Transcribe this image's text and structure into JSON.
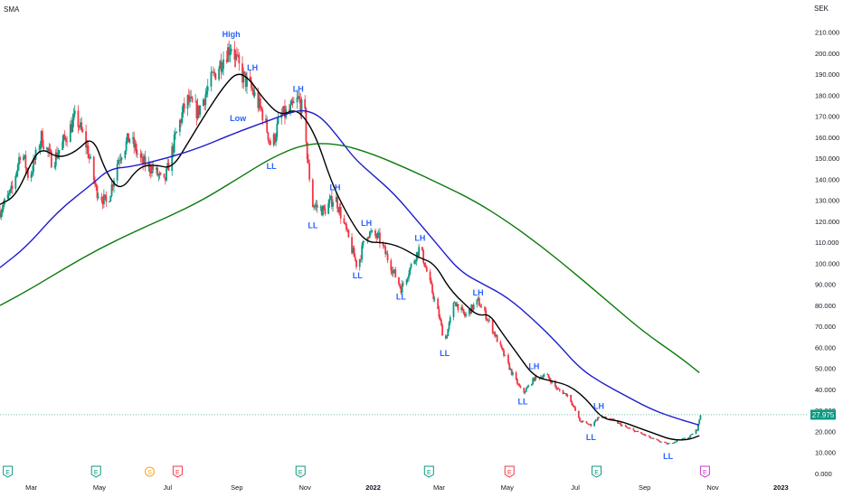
{
  "header": {
    "indicator_label": "SMA",
    "currency": "SEK"
  },
  "price_tag": {
    "value": "27.975",
    "value_num": 27.975,
    "color": "#089981"
  },
  "colors": {
    "up": "#089981",
    "down": "#f23645",
    "sma_short": "#000000",
    "sma_mid": "#1c1ccc",
    "sma_long": "#0a7a0a",
    "annotation": "#2962ff"
  },
  "chart_data": {
    "type": "line",
    "title": "",
    "xlabel": "",
    "ylabel": "",
    "y_axis": {
      "min": 0,
      "max": 215,
      "scale": "linear",
      "position": "right"
    },
    "y_ticks": [
      {
        "v": 0,
        "label": "0.000"
      },
      {
        "v": 10,
        "label": "10.000"
      },
      {
        "v": 20,
        "label": "20.000"
      },
      {
        "v": 30,
        "label": "30.000"
      },
      {
        "v": 40,
        "label": "40.000"
      },
      {
        "v": 50,
        "label": "50.000"
      },
      {
        "v": 60,
        "label": "60.000"
      },
      {
        "v": 70,
        "label": "70.000"
      },
      {
        "v": 80,
        "label": "80.000"
      },
      {
        "v": 90,
        "label": "90.000"
      },
      {
        "v": 100,
        "label": "100.000"
      },
      {
        "v": 110,
        "label": "110.000"
      },
      {
        "v": 120,
        "label": "120.000"
      },
      {
        "v": 130,
        "label": "130.000"
      },
      {
        "v": 140,
        "label": "140.000"
      },
      {
        "v": 150,
        "label": "150.000"
      },
      {
        "v": 160,
        "label": "160.000"
      },
      {
        "v": 170,
        "label": "170.000"
      },
      {
        "v": 180,
        "label": "180.000"
      },
      {
        "v": 190,
        "label": "190.000"
      },
      {
        "v": 200,
        "label": "200.000"
      },
      {
        "v": 210,
        "label": "210.000"
      }
    ],
    "x_axis": {
      "start": "2021-02-01",
      "end": "2023-01-25"
    },
    "x_ticks": [
      {
        "date": "2021-03-01",
        "label": "Mar"
      },
      {
        "date": "2021-05-01",
        "label": "May"
      },
      {
        "date": "2021-07-01",
        "label": "Jul"
      },
      {
        "date": "2021-09-01",
        "label": "Sep"
      },
      {
        "date": "2021-11-01",
        "label": "Nov"
      },
      {
        "date": "2022-01-01",
        "label": "2022"
      },
      {
        "date": "2022-03-01",
        "label": "Mar"
      },
      {
        "date": "2022-05-01",
        "label": "May"
      },
      {
        "date": "2022-07-01",
        "label": "Jul"
      },
      {
        "date": "2022-09-01",
        "label": "Sep"
      },
      {
        "date": "2022-11-01",
        "label": "Nov"
      },
      {
        "date": "2023-01-01",
        "label": "2023"
      }
    ],
    "price_path": [
      [
        "2021-02-01",
        125
      ],
      [
        "2021-02-12",
        135
      ],
      [
        "2021-02-20",
        155
      ],
      [
        "2021-02-27",
        140
      ],
      [
        "2021-03-10",
        160
      ],
      [
        "2021-03-20",
        148
      ],
      [
        "2021-03-30",
        158
      ],
      [
        "2021-04-10",
        170
      ],
      [
        "2021-04-20",
        155
      ],
      [
        "2021-04-28",
        135
      ],
      [
        "2021-05-08",
        128
      ],
      [
        "2021-05-18",
        150
      ],
      [
        "2021-05-28",
        160
      ],
      [
        "2021-06-08",
        148
      ],
      [
        "2021-06-18",
        145
      ],
      [
        "2021-06-28",
        138
      ],
      [
        "2021-07-08",
        160
      ],
      [
        "2021-07-18",
        178
      ],
      [
        "2021-07-28",
        172
      ],
      [
        "2021-08-10",
        188
      ],
      [
        "2021-08-20",
        198
      ],
      [
        "2021-08-27",
        204
      ],
      [
        "2021-09-05",
        190
      ],
      [
        "2021-09-15",
        182
      ],
      [
        "2021-09-25",
        170
      ],
      [
        "2021-10-02",
        155
      ],
      [
        "2021-10-10",
        170
      ],
      [
        "2021-10-18",
        172
      ],
      [
        "2021-10-26",
        178
      ],
      [
        "2021-11-01",
        170
      ],
      [
        "2021-11-03",
        150
      ],
      [
        "2021-11-08",
        128
      ],
      [
        "2021-11-18",
        125
      ],
      [
        "2021-11-28",
        132
      ],
      [
        "2021-12-08",
        115
      ],
      [
        "2021-12-18",
        98
      ],
      [
        "2021-12-26",
        115
      ],
      [
        "2022-01-06",
        112
      ],
      [
        "2022-01-16",
        100
      ],
      [
        "2022-01-26",
        88
      ],
      [
        "2022-02-05",
        100
      ],
      [
        "2022-02-12",
        108
      ],
      [
        "2022-02-20",
        92
      ],
      [
        "2022-03-01",
        75
      ],
      [
        "2022-03-06",
        62
      ],
      [
        "2022-03-15",
        82
      ],
      [
        "2022-03-24",
        75
      ],
      [
        "2022-04-05",
        82
      ],
      [
        "2022-04-15",
        72
      ],
      [
        "2022-04-25",
        60
      ],
      [
        "2022-05-05",
        48
      ],
      [
        "2022-05-15",
        38
      ],
      [
        "2022-05-25",
        45
      ],
      [
        "2022-06-05",
        47
      ],
      [
        "2022-06-15",
        40
      ],
      [
        "2022-06-25",
        37
      ],
      [
        "2022-07-05",
        25
      ],
      [
        "2022-07-15",
        23
      ],
      [
        "2022-07-22",
        27
      ],
      [
        "2022-08-01",
        26
      ],
      [
        "2022-08-15",
        22
      ],
      [
        "2022-08-29",
        19
      ],
      [
        "2022-09-10",
        16
      ],
      [
        "2022-09-22",
        14
      ],
      [
        "2022-10-02",
        16
      ],
      [
        "2022-10-10",
        17
      ],
      [
        "2022-10-18",
        21
      ],
      [
        "2022-10-21",
        28
      ]
    ],
    "series": [
      {
        "name": "",
        "color": "#000000",
        "points": [
          [
            "2021-02-01",
            128
          ],
          [
            "2021-02-15",
            132
          ],
          [
            "2021-03-01",
            148
          ],
          [
            "2021-03-10",
            155
          ],
          [
            "2021-03-25",
            150
          ],
          [
            "2021-04-10",
            153
          ],
          [
            "2021-04-25",
            161
          ],
          [
            "2021-05-07",
            143
          ],
          [
            "2021-05-20",
            134
          ],
          [
            "2021-06-05",
            146
          ],
          [
            "2021-06-20",
            147
          ],
          [
            "2021-07-05",
            145
          ],
          [
            "2021-07-20",
            158
          ],
          [
            "2021-08-05",
            172
          ],
          [
            "2021-08-20",
            184
          ],
          [
            "2021-09-01",
            191
          ],
          [
            "2021-09-12",
            188
          ],
          [
            "2021-09-25",
            178
          ],
          [
            "2021-10-10",
            170
          ],
          [
            "2021-10-25",
            174
          ],
          [
            "2021-11-10",
            162
          ],
          [
            "2021-11-25",
            138
          ],
          [
            "2021-12-10",
            122
          ],
          [
            "2021-12-25",
            110
          ],
          [
            "2022-01-10",
            110
          ],
          [
            "2022-01-25",
            108
          ],
          [
            "2022-02-10",
            103
          ],
          [
            "2022-02-25",
            100
          ],
          [
            "2022-03-10",
            88
          ],
          [
            "2022-03-25",
            80
          ],
          [
            "2022-04-05",
            75
          ],
          [
            "2022-04-15",
            76
          ],
          [
            "2022-04-25",
            68
          ],
          [
            "2022-05-10",
            57
          ],
          [
            "2022-05-25",
            46
          ],
          [
            "2022-06-10",
            44
          ],
          [
            "2022-06-25",
            42
          ],
          [
            "2022-07-10",
            36
          ],
          [
            "2022-07-25",
            26
          ],
          [
            "2022-08-10",
            25
          ],
          [
            "2022-08-25",
            22
          ],
          [
            "2022-09-10",
            19
          ],
          [
            "2022-09-25",
            16
          ],
          [
            "2022-10-10",
            16
          ],
          [
            "2022-10-20",
            18
          ]
        ]
      },
      {
        "name": "",
        "color": "#1c1ccc",
        "points": [
          [
            "2021-02-01",
            98
          ],
          [
            "2021-02-25",
            108
          ],
          [
            "2021-03-25",
            125
          ],
          [
            "2021-04-25",
            138
          ],
          [
            "2021-05-10",
            145
          ],
          [
            "2021-05-30",
            146
          ],
          [
            "2021-06-30",
            150
          ],
          [
            "2021-07-30",
            155
          ],
          [
            "2021-08-30",
            162
          ],
          [
            "2021-09-30",
            168
          ],
          [
            "2021-10-20",
            172
          ],
          [
            "2021-11-01",
            173
          ],
          [
            "2021-11-15",
            170
          ],
          [
            "2021-12-01",
            160
          ],
          [
            "2021-12-15",
            150
          ],
          [
            "2022-01-01",
            142
          ],
          [
            "2022-01-20",
            133
          ],
          [
            "2022-02-10",
            120
          ],
          [
            "2022-03-01",
            108
          ],
          [
            "2022-03-20",
            96
          ],
          [
            "2022-04-10",
            90
          ],
          [
            "2022-05-01",
            84
          ],
          [
            "2022-05-25",
            73
          ],
          [
            "2022-06-15",
            62
          ],
          [
            "2022-07-05",
            50
          ],
          [
            "2022-07-25",
            43
          ],
          [
            "2022-08-15",
            37
          ],
          [
            "2022-09-05",
            31
          ],
          [
            "2022-09-25",
            27
          ],
          [
            "2022-10-20",
            23
          ]
        ]
      },
      {
        "name": "",
        "color": "#0a7a0a",
        "points": [
          [
            "2021-02-01",
            80
          ],
          [
            "2021-03-01",
            88
          ],
          [
            "2021-04-01",
            98
          ],
          [
            "2021-05-01",
            107
          ],
          [
            "2021-06-01",
            115
          ],
          [
            "2021-07-01",
            122
          ],
          [
            "2021-08-01",
            130
          ],
          [
            "2021-09-01",
            140
          ],
          [
            "2021-10-01",
            150
          ],
          [
            "2021-11-01",
            157
          ],
          [
            "2021-12-01",
            157
          ],
          [
            "2022-01-01",
            152
          ],
          [
            "2022-02-01",
            145
          ],
          [
            "2022-03-01",
            138
          ],
          [
            "2022-04-01",
            130
          ],
          [
            "2022-05-01",
            120
          ],
          [
            "2022-06-01",
            108
          ],
          [
            "2022-07-01",
            95
          ],
          [
            "2022-08-01",
            81
          ],
          [
            "2022-09-01",
            67
          ],
          [
            "2022-10-01",
            56
          ],
          [
            "2022-10-20",
            48
          ]
        ]
      }
    ],
    "annotations": [
      {
        "text": "High",
        "date": "2021-08-27",
        "y": 206,
        "anchor": "above"
      },
      {
        "text": "LH",
        "date": "2021-09-15",
        "y": 190,
        "anchor": "above"
      },
      {
        "text": "LH",
        "date": "2021-10-26",
        "y": 180,
        "anchor": "above"
      },
      {
        "text": "Low",
        "date": "2021-09-02",
        "y": 166,
        "anchor": "above"
      },
      {
        "text": "LL",
        "date": "2021-10-02",
        "y": 150,
        "anchor": "below"
      },
      {
        "text": "LH",
        "date": "2021-11-28",
        "y": 133,
        "anchor": "above"
      },
      {
        "text": "LL",
        "date": "2021-11-08",
        "y": 122,
        "anchor": "below"
      },
      {
        "text": "LH",
        "date": "2021-12-26",
        "y": 116,
        "anchor": "above"
      },
      {
        "text": "LL",
        "date": "2021-12-18",
        "y": 98,
        "anchor": "below"
      },
      {
        "text": "LH",
        "date": "2022-02-12",
        "y": 109,
        "anchor": "above"
      },
      {
        "text": "LL",
        "date": "2022-01-26",
        "y": 88,
        "anchor": "below"
      },
      {
        "text": "LH",
        "date": "2022-04-05",
        "y": 83,
        "anchor": "above"
      },
      {
        "text": "LL",
        "date": "2022-03-06",
        "y": 61,
        "anchor": "below"
      },
      {
        "text": "LH",
        "date": "2022-05-25",
        "y": 48,
        "anchor": "above"
      },
      {
        "text": "LL",
        "date": "2022-05-15",
        "y": 38,
        "anchor": "below"
      },
      {
        "text": "LH",
        "date": "2022-07-22",
        "y": 29,
        "anchor": "above"
      },
      {
        "text": "LL",
        "date": "2022-07-15",
        "y": 21,
        "anchor": "below"
      },
      {
        "text": "LL",
        "date": "2022-09-22",
        "y": 12,
        "anchor": "below"
      }
    ],
    "event_markers": [
      {
        "date": "2021-02-08",
        "label": "E",
        "kind": "earnings"
      },
      {
        "date": "2021-04-28",
        "label": "E",
        "kind": "earnings"
      },
      {
        "date": "2021-06-15",
        "label": "S",
        "kind": "split"
      },
      {
        "date": "2021-07-10",
        "label": "E",
        "kind": "earnings-red"
      },
      {
        "date": "2021-10-28",
        "label": "E",
        "kind": "earnings"
      },
      {
        "date": "2022-02-20",
        "label": "E",
        "kind": "earnings"
      },
      {
        "date": "2022-05-03",
        "label": "E",
        "kind": "earnings-red"
      },
      {
        "date": "2022-07-20",
        "label": "E",
        "kind": "earnings"
      },
      {
        "date": "2022-10-25",
        "label": "E",
        "kind": "future"
      }
    ],
    "grid": false
  }
}
